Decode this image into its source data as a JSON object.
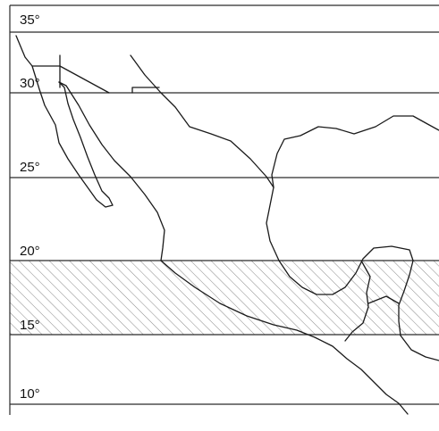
{
  "map": {
    "region": "Mexico and Central America",
    "latitude_labels": [
      "35°",
      "30°",
      "25°",
      "20°",
      "15°",
      "10°"
    ],
    "latitudes": [
      35,
      30,
      25,
      20,
      15,
      10
    ],
    "highlighted_band": {
      "from_lat": 15,
      "to_lat": 20,
      "pattern": "diagonal-hatch"
    },
    "colors": {
      "background": "#ffffff",
      "lines": "#2b2b2b",
      "hatch": "#888888"
    }
  }
}
